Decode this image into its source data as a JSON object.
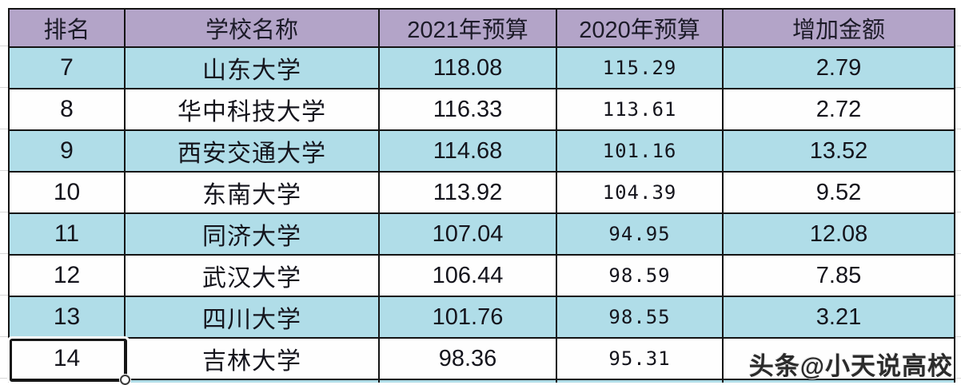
{
  "table": {
    "headers": [
      "排名",
      "学校名称",
      "2021年预算",
      "2020年预算",
      "增加金额"
    ],
    "rows": [
      {
        "rank": "7",
        "school": "山东大学",
        "y2021": "118.08",
        "y2020": "115.29",
        "increase": "2.79",
        "highlight": true,
        "selected": false
      },
      {
        "rank": "8",
        "school": "华中科技大学",
        "y2021": "116.33",
        "y2020": "113.61",
        "increase": "2.72",
        "highlight": false,
        "selected": false
      },
      {
        "rank": "9",
        "school": "西安交通大学",
        "y2021": "114.68",
        "y2020": "101.16",
        "increase": "13.52",
        "highlight": true,
        "selected": false
      },
      {
        "rank": "10",
        "school": "东南大学",
        "y2021": "113.92",
        "y2020": "104.39",
        "increase": "9.52",
        "highlight": false,
        "selected": false
      },
      {
        "rank": "11",
        "school": "同济大学",
        "y2021": "107.04",
        "y2020": "94.95",
        "increase": "12.08",
        "highlight": true,
        "selected": false
      },
      {
        "rank": "12",
        "school": "武汉大学",
        "y2021": "106.44",
        "y2020": "98.59",
        "increase": "7.85",
        "highlight": false,
        "selected": false
      },
      {
        "rank": "13",
        "school": "四川大学",
        "y2021": "101.76",
        "y2020": "98.55",
        "increase": "3.21",
        "highlight": true,
        "selected": false
      },
      {
        "rank": "14",
        "school": "吉林大学",
        "y2021": "98.36",
        "y2020": "95.31",
        "increase": "",
        "highlight": false,
        "selected": true
      }
    ]
  },
  "watermark": "头条@小天说高校",
  "colors": {
    "header_bg": "#b3a4c8",
    "row_highlight_bg": "#b0dde8",
    "row_plain_bg": "#fefefe",
    "border": "#141414",
    "text": "#14141c",
    "watermark_text": "#2b2b2b",
    "gridline": "#d7d7d7"
  }
}
